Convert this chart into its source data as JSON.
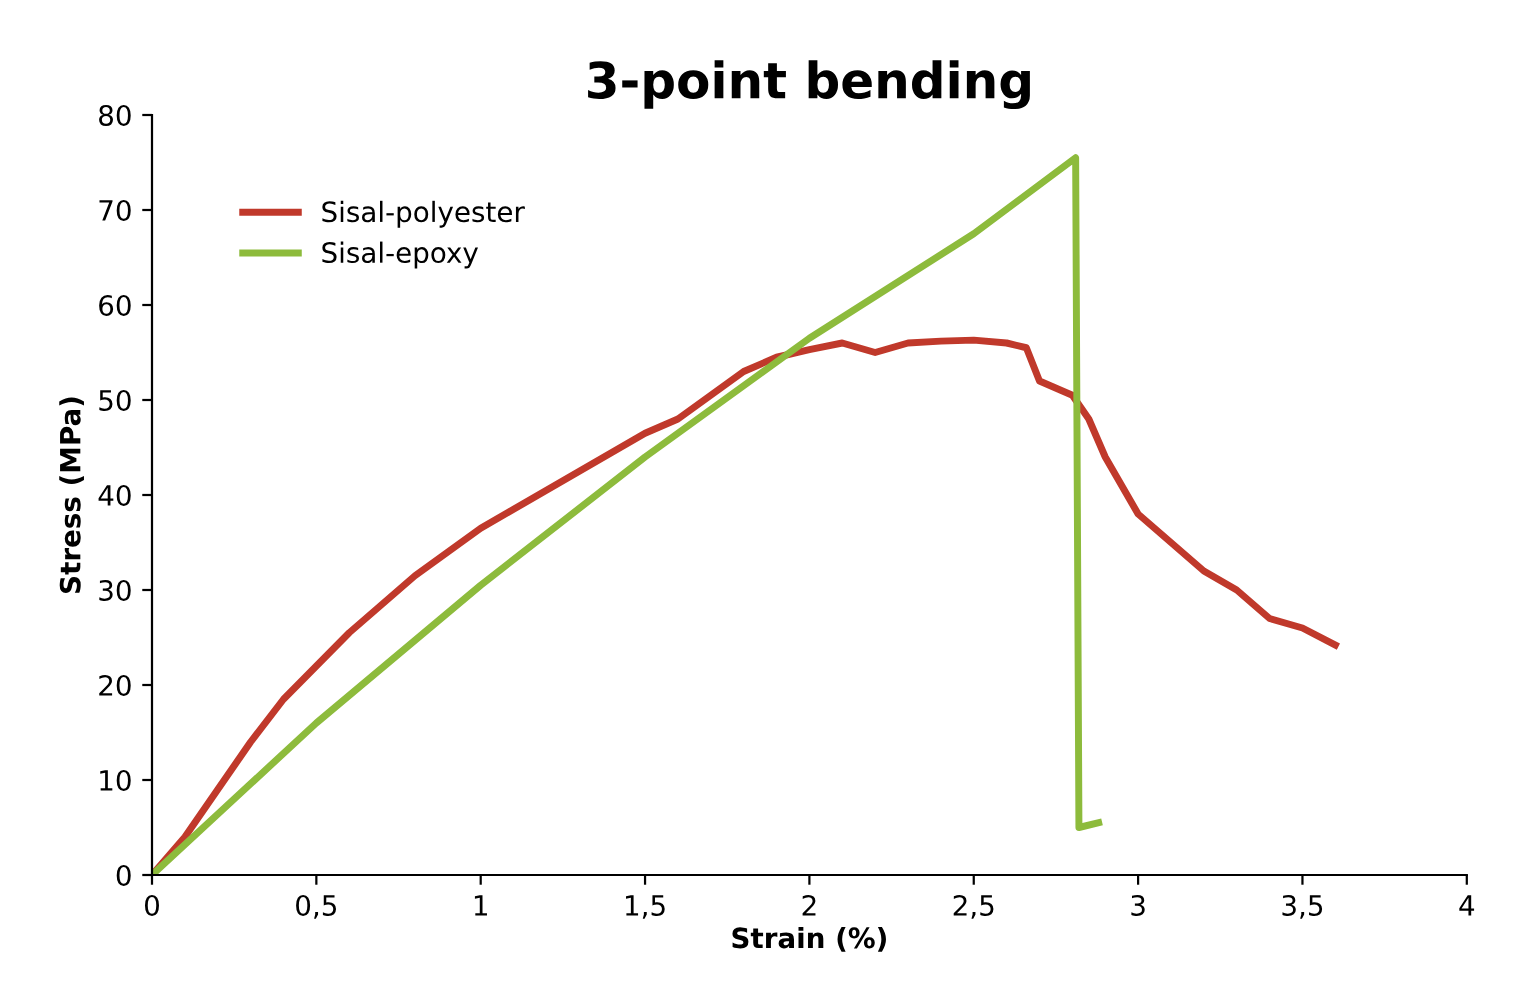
{
  "chart_data": {
    "type": "line",
    "title": "3-point bending",
    "xlabel": "Strain (%)",
    "ylabel": "Stress (MPa)",
    "xlim": [
      0,
      4
    ],
    "xticks": [
      0,
      {
        "value": 0.5,
        "label": "0,5"
      },
      1,
      {
        "value": 1.5,
        "label": "1,5"
      },
      2,
      {
        "value": 2.5,
        "label": "2,5"
      },
      3,
      {
        "value": 3.5,
        "label": "3,5"
      },
      4
    ],
    "ylim": [
      0,
      80
    ],
    "yticks": [
      0,
      10,
      20,
      30,
      40,
      50,
      60,
      70,
      80
    ],
    "grid": false,
    "legend": "top left",
    "marker": "none",
    "line_style": "solid",
    "series": [
      {
        "name": "Sisal-polyester",
        "color": "#c0392b",
        "x": [
          0,
          0.1,
          0.2,
          0.3,
          0.4,
          0.5,
          0.6,
          0.7,
          0.8,
          0.9,
          1.0,
          1.1,
          1.2,
          1.3,
          1.4,
          1.5,
          1.6,
          1.7,
          1.8,
          1.9,
          2.0,
          2.1,
          2.2,
          2.3,
          2.4,
          2.5,
          2.6,
          2.66,
          2.7,
          2.8,
          2.85,
          2.9,
          3.0,
          3.1,
          3.2,
          3.3,
          3.4,
          3.5,
          3.6
        ],
        "values": [
          0,
          4,
          9,
          14,
          18.5,
          22,
          25.5,
          28.5,
          31.5,
          34,
          36.5,
          38.5,
          40.5,
          42.5,
          44.5,
          46.5,
          48,
          50.5,
          53,
          54.5,
          55.3,
          56,
          55,
          56,
          56.2,
          56.3,
          56,
          55.5,
          52,
          50.5,
          48,
          44,
          38,
          35,
          32,
          30,
          27,
          26,
          24.2
        ]
      },
      {
        "name": "Sisal-epoxy",
        "color": "#8dbb3c",
        "x": [
          0,
          0.5,
          1.0,
          1.5,
          2.0,
          2.5,
          2.81,
          2.82,
          2.88
        ],
        "values": [
          0,
          16,
          30.5,
          44,
          56.5,
          67.5,
          75.5,
          5,
          5.5
        ]
      }
    ]
  }
}
